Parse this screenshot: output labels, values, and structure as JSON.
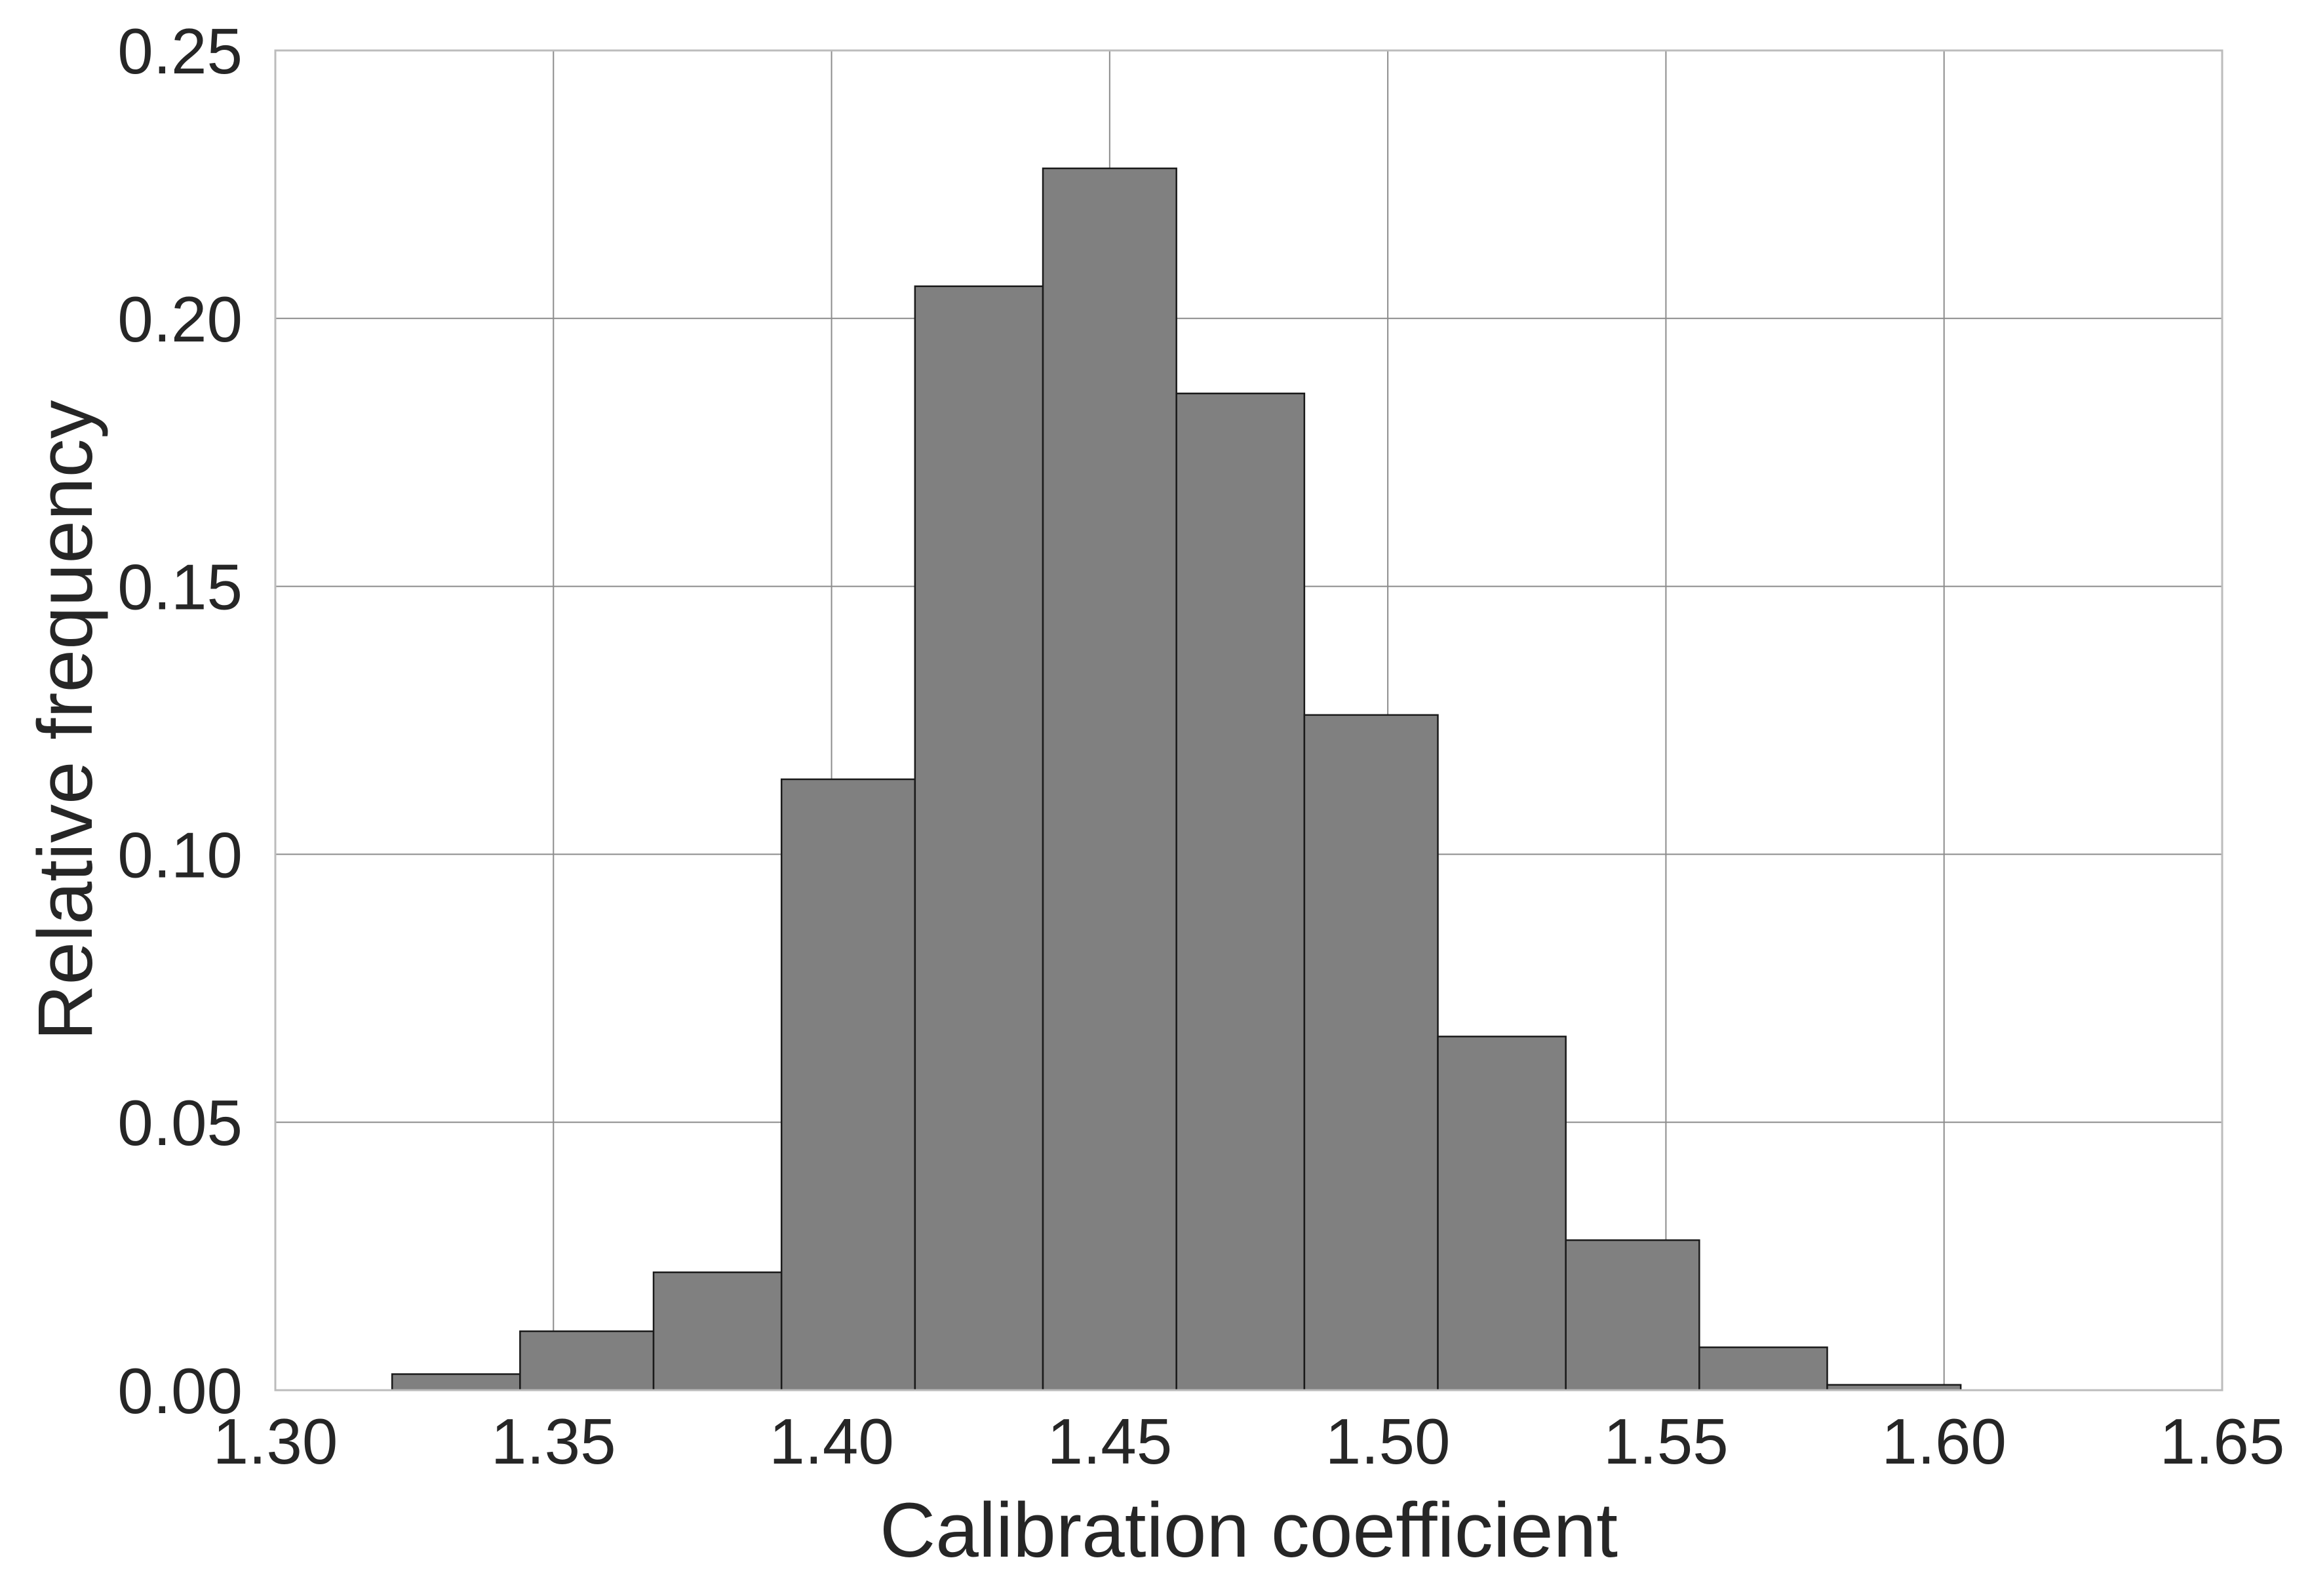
{
  "chart_data": {
    "type": "bar",
    "title": "",
    "xlabel": "Calibration coefficient",
    "ylabel": "Relative frequency",
    "xlim": [
      1.3,
      1.65
    ],
    "ylim": [
      0.0,
      0.25
    ],
    "xticks": [
      "1.30",
      "1.35",
      "1.40",
      "1.45",
      "1.50",
      "1.55",
      "1.60",
      "1.65"
    ],
    "yticks": [
      "0.00",
      "0.05",
      "0.10",
      "0.15",
      "0.20",
      "0.25"
    ],
    "grid": true,
    "bar_color": "#808080",
    "bins": [
      {
        "x0": 1.321,
        "x1": 1.344,
        "value": 0.003
      },
      {
        "x0": 1.344,
        "x1": 1.368,
        "value": 0.011
      },
      {
        "x0": 1.368,
        "x1": 1.391,
        "value": 0.022
      },
      {
        "x0": 1.391,
        "x1": 1.415,
        "value": 0.114
      },
      {
        "x0": 1.415,
        "x1": 1.438,
        "value": 0.206
      },
      {
        "x0": 1.438,
        "x1": 1.462,
        "value": 0.228
      },
      {
        "x0": 1.462,
        "x1": 1.485,
        "value": 0.186
      },
      {
        "x0": 1.485,
        "x1": 1.509,
        "value": 0.126
      },
      {
        "x0": 1.509,
        "x1": 1.532,
        "value": 0.066
      },
      {
        "x0": 1.532,
        "x1": 1.556,
        "value": 0.028
      },
      {
        "x0": 1.556,
        "x1": 1.579,
        "value": 0.008
      },
      {
        "x0": 1.579,
        "x1": 1.603,
        "value": 0.001
      }
    ]
  }
}
